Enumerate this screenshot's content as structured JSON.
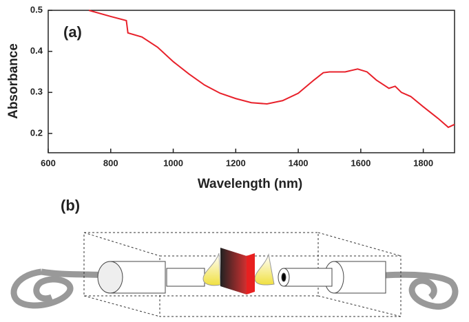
{
  "chart_data": {
    "type": "line",
    "annotation": "(a)",
    "x_label": "Wavelength (nm)",
    "y_label": "Absorbance",
    "x": [
      730,
      800,
      850,
      855,
      900,
      950,
      1000,
      1050,
      1100,
      1150,
      1200,
      1250,
      1300,
      1350,
      1400,
      1450,
      1480,
      1500,
      1550,
      1590,
      1620,
      1650,
      1690,
      1710,
      1730,
      1760,
      1800,
      1850,
      1880,
      1900
    ],
    "series": [
      {
        "name": "Absorbance",
        "color": "#e8202a",
        "values": [
          0.5,
          0.485,
          0.475,
          0.445,
          0.435,
          0.41,
          0.375,
          0.345,
          0.318,
          0.298,
          0.285,
          0.275,
          0.272,
          0.28,
          0.298,
          0.33,
          0.348,
          0.35,
          0.35,
          0.357,
          0.35,
          0.33,
          0.31,
          0.315,
          0.3,
          0.29,
          0.265,
          0.235,
          0.215,
          0.222
        ]
      }
    ],
    "xlim": [
      600,
      1900
    ],
    "xticks": [
      600,
      800,
      1000,
      1200,
      1400,
      1600,
      1800
    ],
    "ylim": [
      0.153,
      0.5
    ],
    "yticks": [
      0.2,
      0.3,
      0.4,
      0.5
    ]
  },
  "diagram": {
    "label": "(b)"
  }
}
